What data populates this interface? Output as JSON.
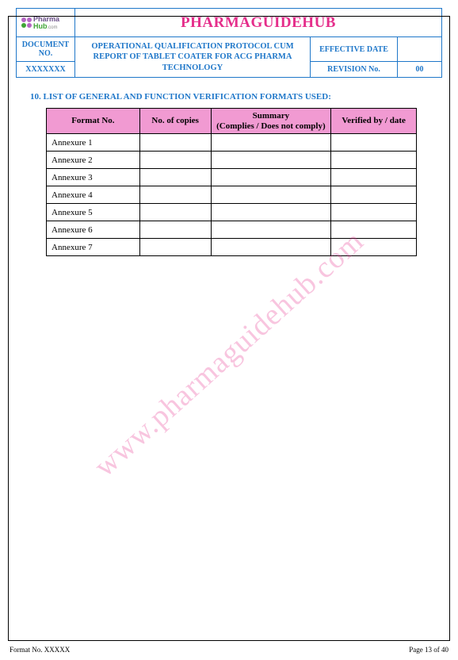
{
  "logo": {
    "line1": "Pharma",
    "line2": "Hub",
    "suffix": ".com",
    "dot_colors": [
      "#b565c4",
      "#b565c4",
      "#3fa535",
      "#b565c4"
    ]
  },
  "brand": "PHARMAGUIDEHUB",
  "header": {
    "doc_no_label": "DOCUMENT NO.",
    "doc_no_value": "XXXXXXX",
    "mid_text": "OPERATIONAL QUALIFICATION PROTOCOL CUM REPORT OF TABLET COATER FOR ACG PHARMA TECHNOLOGY",
    "eff_date_label": "EFFECTIVE DATE",
    "eff_date_value": "",
    "rev_label": "REVISION No.",
    "rev_value": "00"
  },
  "section": {
    "number": "10.",
    "title": "LIST OF GENERAL AND FUNCTION VERIFICATION FORMATS USED:"
  },
  "table": {
    "header_bg": "#f19ad2",
    "columns": {
      "format": "Format No.",
      "copies": "No. of copies",
      "summary_l1": "Summary",
      "summary_l2": "(Complies / Does not comply)",
      "verified": "Verified by / date"
    },
    "rows": [
      {
        "format": "Annexure 1",
        "copies": "",
        "summary": "",
        "verified": ""
      },
      {
        "format": "Annexure 2",
        "copies": "",
        "summary": "",
        "verified": ""
      },
      {
        "format": "Annexure 3",
        "copies": "",
        "summary": "",
        "verified": ""
      },
      {
        "format": "Annexure 4",
        "copies": "",
        "summary": "",
        "verified": ""
      },
      {
        "format": "Annexure 5",
        "copies": "",
        "summary": "",
        "verified": ""
      },
      {
        "format": "Annexure 6",
        "copies": "",
        "summary": "",
        "verified": ""
      },
      {
        "format": "Annexure 7",
        "copies": "",
        "summary": "",
        "verified": ""
      }
    ]
  },
  "watermark": "www.pharmaguidehub.com",
  "footer": {
    "left": "Format No. XXXXX",
    "right": "Page 13 of 40"
  },
  "colors": {
    "border_blue": "#1f77c9",
    "brand_pink": "#e52e8b",
    "watermark_pink": "rgba(229,46,139,0.28)"
  }
}
